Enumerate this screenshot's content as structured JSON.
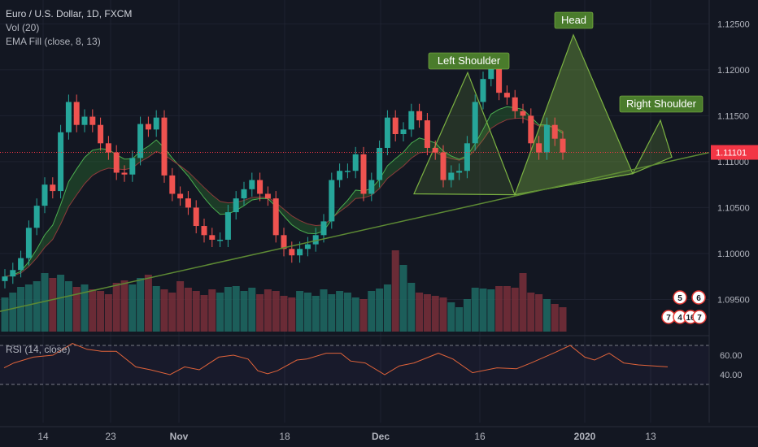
{
  "header": {
    "symbol_title": "Euro / U.S. Dollar, 1D, FXCM",
    "volume_indicator": "Vol (20)",
    "ema_indicator": "EMA Fill (close, 8, 13)",
    "rsi_indicator": "RSI (14, close)"
  },
  "annotations": {
    "left_shoulder": "Left Shoulder",
    "head": "Head",
    "right_shoulder": "Right Shoulder"
  },
  "price_axis": {
    "ticks": [
      "1.12500",
      "1.12000",
      "1.11500",
      "1.11000",
      "1.10500",
      "1.10000",
      "1.09500"
    ],
    "current_price": "1.11101"
  },
  "rsi_axis": {
    "ticks": [
      "60.00",
      "40.00"
    ]
  },
  "time_axis": {
    "ticks": [
      "14",
      "23",
      "Nov",
      "18",
      "Dec",
      "16",
      "2020",
      "13"
    ]
  },
  "badges": [
    "5",
    "6",
    "7",
    "4",
    "16",
    "7"
  ],
  "colors": {
    "background": "#131722",
    "up": "#26a69a",
    "down": "#ef5350",
    "trendline": "#5d8a34",
    "pattern_fill": "#7cb342",
    "rsi_line": "#e0633a",
    "current_price_line": "#f23645",
    "label_bg": "#4a7c2c"
  },
  "chart_data": {
    "type": "candlestick",
    "title": "Euro / U.S. Dollar, 1D, FXCM",
    "x_ticks": [
      "14",
      "23",
      "Nov",
      "18",
      "Dec",
      "16",
      "2020",
      "13"
    ],
    "y_ticks": [
      1.125,
      1.12,
      1.115,
      1.11,
      1.105,
      1.1,
      1.095
    ],
    "ylim": [
      1.0915,
      1.1276
    ],
    "current_price": 1.11101,
    "closes": [
      1.0975,
      1.0982,
      1.0995,
      1.1028,
      1.1052,
      1.1075,
      1.1068,
      1.1132,
      1.1165,
      1.114,
      1.1149,
      1.114,
      1.112,
      1.111,
      1.1088,
      1.1086,
      1.1104,
      1.1141,
      1.1135,
      1.1148,
      1.1085,
      1.1065,
      1.106,
      1.105,
      1.103,
      1.102,
      1.1015,
      1.1015,
      1.1045,
      1.106,
      1.107,
      1.108,
      1.1065,
      1.106,
      1.102,
      1.1005,
      1.0998,
      1.1005,
      1.101,
      1.102,
      1.1035,
      1.108,
      1.109,
      1.109,
      1.1108,
      1.1065,
      1.108,
      1.1115,
      1.1148,
      1.113,
      1.1135,
      1.1155,
      1.1145,
      1.1115,
      1.111,
      1.108,
      1.1088,
      1.109,
      1.112,
      1.1165,
      1.119,
      1.121,
      1.1175,
      1.117,
      1.1155,
      1.115,
      1.112,
      1.111,
      1.114,
      1.1125,
      1.111
    ],
    "volume_levels": [
      0.42,
      0.48,
      0.55,
      0.58,
      0.62,
      0.72,
      0.66,
      0.7,
      0.62,
      0.55,
      0.58,
      0.52,
      0.5,
      0.46,
      0.6,
      0.63,
      0.58,
      0.66,
      0.7,
      0.56,
      0.52,
      0.48,
      0.62,
      0.54,
      0.5,
      0.45,
      0.52,
      0.48,
      0.55,
      0.56,
      0.5,
      0.54,
      0.46,
      0.52,
      0.5,
      0.44,
      0.42,
      0.5,
      0.48,
      0.44,
      0.52,
      0.46,
      0.5,
      0.48,
      0.42,
      0.4,
      0.5,
      0.53,
      0.58,
      1.0,
      0.82,
      0.6,
      0.48,
      0.46,
      0.44,
      0.42,
      0.36,
      0.3,
      0.4,
      0.54,
      0.53,
      0.52,
      0.56,
      0.56,
      0.54,
      0.72,
      0.48,
      0.46,
      0.4,
      0.34,
      0.3
    ],
    "rsi": [
      {
        "date_index": 0,
        "value": 47
      },
      {
        "date_index": 2,
        "value": 52
      },
      {
        "date_index": 6,
        "value": 58
      },
      {
        "date_index": 10,
        "value": 60
      },
      {
        "date_index": 14,
        "value": 72
      },
      {
        "date_index": 17,
        "value": 66
      },
      {
        "date_index": 20,
        "value": 64
      },
      {
        "date_index": 23,
        "value": 64
      },
      {
        "date_index": 27,
        "value": 48
      },
      {
        "date_index": 30,
        "value": 45
      },
      {
        "date_index": 34,
        "value": 40
      },
      {
        "date_index": 37,
        "value": 48
      },
      {
        "date_index": 40,
        "value": 45
      },
      {
        "date_index": 44,
        "value": 58
      },
      {
        "date_index": 47,
        "value": 60
      },
      {
        "date_index": 50,
        "value": 56
      },
      {
        "date_index": 52,
        "value": 44
      },
      {
        "date_index": 54,
        "value": 41
      },
      {
        "date_index": 56,
        "value": 44
      },
      {
        "date_index": 60,
        "value": 55
      },
      {
        "date_index": 62,
        "value": 56
      },
      {
        "date_index": 66,
        "value": 62
      },
      {
        "date_index": 69,
        "value": 62
      },
      {
        "date_index": 71,
        "value": 54
      },
      {
        "date_index": 74,
        "value": 52
      },
      {
        "date_index": 78,
        "value": 40
      },
      {
        "date_index": 81,
        "value": 49
      },
      {
        "date_index": 84,
        "value": 52
      },
      {
        "date_index": 89,
        "value": 62
      },
      {
        "date_index": 92,
        "value": 56
      },
      {
        "date_index": 96,
        "value": 42
      },
      {
        "date_index": 101,
        "value": 47
      },
      {
        "date_index": 105,
        "value": 46
      },
      {
        "date_index": 108,
        "value": 52
      },
      {
        "date_index": 113,
        "value": 63
      },
      {
        "date_index": 116,
        "value": 70
      },
      {
        "date_index": 119,
        "value": 58
      },
      {
        "date_index": 121,
        "value": 55
      },
      {
        "date_index": 124,
        "value": 62
      },
      {
        "date_index": 127,
        "value": 52
      },
      {
        "date_index": 130,
        "value": 50
      },
      {
        "date_index": 136,
        "value": 48
      }
    ],
    "rsi_ylim": [
      25,
      80
    ],
    "rsi_levels": [
      70,
      30
    ],
    "pattern": [
      "Left Shoulder",
      "Head",
      "Right Shoulder"
    ]
  }
}
